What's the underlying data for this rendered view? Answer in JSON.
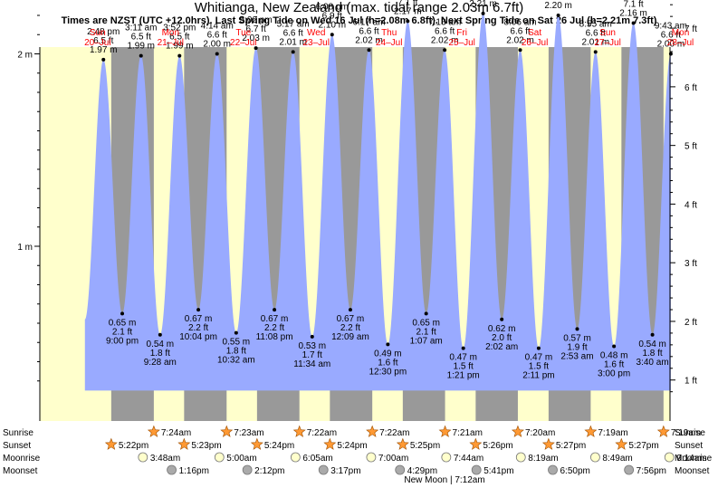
{
  "title": "Whitianga, New Zealand (max. tidal range 2.03m 6.7ft)",
  "subtitle": "Times are NZST (UTC +12.0hrs). Last Spring Tide on Wed 16 Jul (h=2.08m 6.8ft). Next Spring Tide on Sat 26 Jul (h=2.21m 7.3ft)",
  "days": [
    {
      "dow": "Sun",
      "date": "20–Jul"
    },
    {
      "dow": "Mon",
      "date": "21–Jul"
    },
    {
      "dow": "Tue",
      "date": "22–Jul"
    },
    {
      "dow": "Wed",
      "date": "23–Jul"
    },
    {
      "dow": "Thu",
      "date": "24–Jul"
    },
    {
      "dow": "Fri",
      "date": "25–Jul"
    },
    {
      "dow": "Sat",
      "date": "26–Jul"
    },
    {
      "dow": "Sun",
      "date": "27–Jul"
    },
    {
      "dow": "Mon",
      "date": "28–Jul"
    }
  ],
  "chart_data": {
    "type": "area",
    "title": "Whitianga, New Zealand (max. tidal range 2.03m 6.7ft)",
    "y_left_unit": "m",
    "y_right_unit": "ft",
    "y_left_ticks": [
      "1 m",
      "2 m"
    ],
    "y_right_ticks": [
      "1 ft",
      "2 ft",
      "3 ft",
      "4 ft",
      "5 ft",
      "6 ft",
      "7 ft",
      "8 ft"
    ],
    "ylim_m": [
      0.25,
      2.55
    ],
    "time_unit": "hours since 00:00 Sun 20-Jul",
    "tides": [
      {
        "t": 14.8,
        "type": "high",
        "time": "2:48 pm",
        "m": "1.97 m",
        "ft": "6.5 ft",
        "h": 1.97
      },
      {
        "t": 21.0,
        "type": "low",
        "time": "9:00 pm",
        "m": "0.65 m",
        "ft": "2.1 ft",
        "h": 0.65
      },
      {
        "t": 27.18,
        "type": "high",
        "time": "3:11 am",
        "m": "1.99 m",
        "ft": "6.5 ft",
        "h": 1.99
      },
      {
        "t": 33.47,
        "type": "low",
        "time": "9:28 am",
        "m": "0.54 m",
        "ft": "1.8 ft",
        "h": 0.54
      },
      {
        "t": 39.87,
        "type": "high",
        "time": "3:52 pm",
        "m": "1.99 m",
        "ft": "6.5 ft",
        "h": 1.99
      },
      {
        "t": 46.07,
        "type": "low",
        "time": "10:04 pm",
        "m": "0.67 m",
        "ft": "2.2 ft",
        "h": 0.67
      },
      {
        "t": 52.23,
        "type": "high",
        "time": "4:14 am",
        "m": "2.00 m",
        "ft": "6.6 ft",
        "h": 2.0
      },
      {
        "t": 58.53,
        "type": "low",
        "time": "10:32 am",
        "m": "0.55 m",
        "ft": "1.8 ft",
        "h": 0.55
      },
      {
        "t": 65.03,
        "type": "high",
        "time": "5:02 pm",
        "m": "2.03 m",
        "ft": "6.7 ft",
        "h": 2.03
      },
      {
        "t": 71.13,
        "type": "low",
        "time": "11:08 pm",
        "m": "0.67 m",
        "ft": "2.2 ft",
        "h": 0.67
      },
      {
        "t": 77.28,
        "type": "high",
        "time": "5:17 am",
        "m": "2.01 m",
        "ft": "6.6 ft",
        "h": 2.01
      },
      {
        "t": 83.57,
        "type": "low",
        "time": "11:34 am",
        "m": "0.53 m",
        "ft": "1.7 ft",
        "h": 0.53
      },
      {
        "t": 90.13,
        "type": "high",
        "time": "6:08 pm",
        "m": "2.10 m",
        "ft": "6.9 ft",
        "h": 2.1
      },
      {
        "t": 96.15,
        "type": "low",
        "time": "12:09 am",
        "m": "0.67 m",
        "ft": "2.2 ft",
        "h": 0.67
      },
      {
        "t": 102.28,
        "type": "high",
        "time": "6:17 am",
        "m": "2.02 m",
        "ft": "6.6 ft",
        "h": 2.02
      },
      {
        "t": 108.5,
        "type": "low",
        "time": "12:30 pm",
        "m": "0.49 m",
        "ft": "1.6 ft",
        "h": 0.49
      },
      {
        "t": 115.05,
        "type": "high",
        "time": "7:03 pm",
        "m": "2.17 m",
        "ft": "7.1 ft",
        "h": 2.17
      },
      {
        "t": 121.12,
        "type": "low",
        "time": "1:07 am",
        "m": "0.65 m",
        "ft": "2.1 ft",
        "h": 0.65
      },
      {
        "t": 127.22,
        "type": "high",
        "time": "7:13 am",
        "m": "2.02 m",
        "ft": "6.6 ft",
        "h": 2.02
      },
      {
        "t": 133.35,
        "type": "low",
        "time": "1:21 pm",
        "m": "0.47 m",
        "ft": "1.5 ft",
        "h": 0.47
      },
      {
        "t": 139.88,
        "type": "high",
        "time": "7:53 pm",
        "m": "2.21 m",
        "ft": "7.3 ft",
        "h": 2.21
      },
      {
        "t": 146.03,
        "type": "low",
        "time": "2:02 am",
        "m": "0.62 m",
        "ft": "2.0 ft",
        "h": 0.62
      },
      {
        "t": 152.1,
        "type": "high",
        "time": "8:06 am",
        "m": "2.02 m",
        "ft": "6.6 ft",
        "h": 2.02
      },
      {
        "t": 158.18,
        "type": "low",
        "time": "2:11 pm",
        "m": "0.47 m",
        "ft": "1.5 ft",
        "h": 0.47
      },
      {
        "t": 164.65,
        "type": "high",
        "time": "8:39 pm",
        "m": "2.20 m",
        "ft": "7.2 ft",
        "h": 2.2
      },
      {
        "t": 170.88,
        "type": "low",
        "time": "2:53 am",
        "m": "0.57 m",
        "ft": "1.9 ft",
        "h": 0.57
      },
      {
        "t": 176.92,
        "type": "high",
        "time": "8:55 am",
        "m": "2.01 m",
        "ft": "6.6 ft",
        "h": 2.01
      },
      {
        "t": 183.0,
        "type": "low",
        "time": "3:00 pm",
        "m": "0.48 m",
        "ft": "1.6 ft",
        "h": 0.48
      },
      {
        "t": 189.4,
        "type": "high",
        "time": "9:24 pm",
        "m": "2.16 m",
        "ft": "7.1 ft",
        "h": 2.16
      },
      {
        "t": 195.67,
        "type": "low",
        "time": "3:40 am",
        "m": "0.54 m",
        "ft": "1.8 ft",
        "h": 0.54
      },
      {
        "t": 201.72,
        "type": "high",
        "time": "9:43 am",
        "m": "2.00 m",
        "ft": "6.6 ft",
        "h": 2.0
      }
    ]
  },
  "sun_moon": {
    "labels": {
      "sunrise": "Sunrise",
      "sunset": "Sunset",
      "moonrise": "Moonrise",
      "moonset": "Moonset"
    },
    "sunrise": [
      {
        "t": 31.4,
        "time": "7:24am"
      },
      {
        "t": 55.38,
        "time": "7:23am"
      },
      {
        "t": 79.37,
        "time": "7:22am"
      },
      {
        "t": 103.37,
        "time": "7:22am"
      },
      {
        "t": 127.35,
        "time": "7:21am"
      },
      {
        "t": 151.33,
        "time": "7:20am"
      },
      {
        "t": 175.32,
        "time": "7:19am"
      },
      {
        "t": 199.32,
        "time": "7:19am"
      }
    ],
    "sunset": [
      {
        "t": 17.37,
        "time": "5:22pm"
      },
      {
        "t": 41.38,
        "time": "5:23pm"
      },
      {
        "t": 65.4,
        "time": "5:24pm"
      },
      {
        "t": 89.4,
        "time": "5:24pm"
      },
      {
        "t": 113.42,
        "time": "5:25pm"
      },
      {
        "t": 137.43,
        "time": "5:26pm"
      },
      {
        "t": 161.45,
        "time": "5:27pm"
      },
      {
        "t": 185.45,
        "time": "5:27pm"
      }
    ],
    "moonrise": [
      {
        "t": 27.8,
        "time": "3:48am"
      },
      {
        "t": 53.0,
        "time": "5:00am"
      },
      {
        "t": 78.08,
        "time": "6:05am"
      },
      {
        "t": 103.0,
        "time": "7:00am"
      },
      {
        "t": 127.73,
        "time": "7:44am"
      },
      {
        "t": 152.32,
        "time": "8:19am"
      },
      {
        "t": 176.82,
        "time": "8:49am"
      },
      {
        "t": 201.23,
        "time": "9:14am"
      }
    ],
    "moonset": [
      {
        "t": 37.27,
        "time": "1:16pm"
      },
      {
        "t": 62.2,
        "time": "2:12pm"
      },
      {
        "t": 87.28,
        "time": "3:17pm"
      },
      {
        "t": 112.48,
        "time": "4:29pm"
      },
      {
        "t": 137.68,
        "time": "5:41pm"
      },
      {
        "t": 162.83,
        "time": "6:50pm"
      },
      {
        "t": 187.93,
        "time": "7:56pm"
      }
    ],
    "new_moon": "New Moon | 7:12am"
  },
  "colors": {
    "day_bg": "#ffffcc",
    "night_bg": "#999999",
    "tide_fill": "#99aaff",
    "day_header": "#ff0000",
    "star_fill": "#ff9933",
    "moonrise_fill": "#ffffcc",
    "moonset_fill": "#aaaaaa"
  }
}
